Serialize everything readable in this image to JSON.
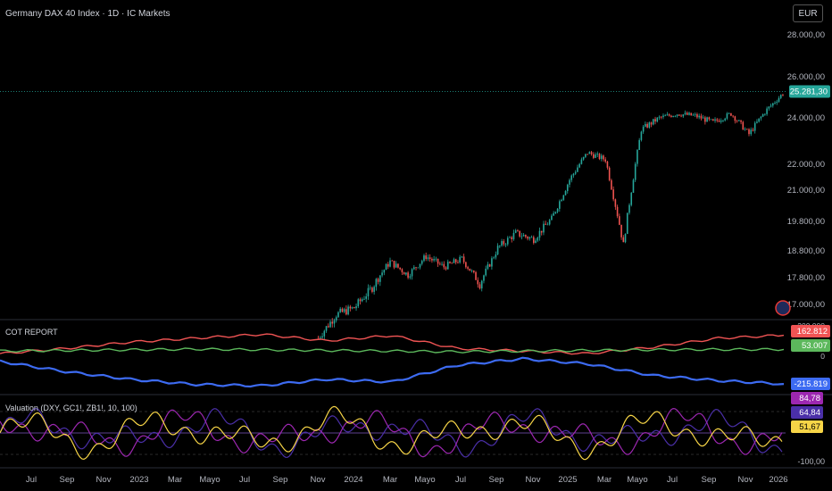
{
  "header": {
    "symbol_title": "Germany DAX 40 Index · 1D · IC Markets",
    "currency_button": "EUR"
  },
  "panes": {
    "cot": {
      "title": "COT REPORT"
    },
    "valuation": {
      "title": "Valuation (DXY, GC1!, ZB1!, 10, 100)"
    }
  },
  "colors": {
    "background": "#000000",
    "candle_up": "#26a69a",
    "candle_down": "#ef5350",
    "cot_red": "#f05454",
    "cot_green": "#5cb85c",
    "cot_blue": "#3d6bf2",
    "val_yellow": "#f7d547",
    "val_purple": "#9c27b0",
    "val_darkpurple": "#4a2fa8"
  },
  "chart_data": [
    {
      "type": "candlestick",
      "title": "Germany DAX 40 Index · 1D · IC Markets",
      "y_axis_ticks": [
        "28.000,00",
        "26.000,00",
        "24.000,00",
        "22.000,00",
        "21.000,00",
        "19.800,00",
        "18.800,00",
        "17.800,00",
        "17.000,00"
      ],
      "last_price": "25.281,30",
      "x_axis_ticks": [
        "Jul",
        "Sep",
        "Nov",
        "2023",
        "Mar",
        "Mayo",
        "Jul",
        "Sep",
        "Nov",
        "2024",
        "Mar",
        "Mayo",
        "Jul",
        "Sep",
        "Nov",
        "2025",
        "Mar",
        "Mayo",
        "Jul",
        "Sep",
        "Nov",
        "2026"
      ],
      "series_close": [
        {
          "x": "2023-11",
          "y": 16000
        },
        {
          "x": "2023-12",
          "y": 16700
        },
        {
          "x": "2024-01",
          "y": 16900
        },
        {
          "x": "2024-02",
          "y": 17500
        },
        {
          "x": "2024-03",
          "y": 18400
        },
        {
          "x": "2024-04",
          "y": 17900
        },
        {
          "x": "2024-05",
          "y": 18600
        },
        {
          "x": "2024-06",
          "y": 18200
        },
        {
          "x": "2024-07",
          "y": 18500
        },
        {
          "x": "2024-08",
          "y": 17600
        },
        {
          "x": "2024-09",
          "y": 18900
        },
        {
          "x": "2024-10",
          "y": 19400
        },
        {
          "x": "2024-11",
          "y": 19200
        },
        {
          "x": "2024-12",
          "y": 19900
        },
        {
          "x": "2025-01",
          "y": 21400
        },
        {
          "x": "2025-02",
          "y": 22500
        },
        {
          "x": "2025-03",
          "y": 22200
        },
        {
          "x": "2025-04",
          "y": 19000
        },
        {
          "x": "2025-05",
          "y": 23500
        },
        {
          "x": "2025-06",
          "y": 24000
        },
        {
          "x": "2025-07",
          "y": 24200
        },
        {
          "x": "2025-08",
          "y": 24100
        },
        {
          "x": "2025-09",
          "y": 23800
        },
        {
          "x": "2025-10",
          "y": 24200
        },
        {
          "x": "2025-11",
          "y": 23300
        },
        {
          "x": "2025-12",
          "y": 24400
        },
        {
          "x": "2026-01",
          "y": 25281.3
        }
      ]
    },
    {
      "type": "line",
      "title": "COT REPORT",
      "last_values": [
        "162.812",
        "53.007",
        "-215.819"
      ],
      "series": [
        {
          "color": "#f05454",
          "values": [
            20000,
            60000,
            110000,
            140000,
            170000,
            120000,
            160000,
            60000,
            40000,
            20000,
            70000,
            140000,
            162812
          ]
        },
        {
          "color": "#5cb85c",
          "values": [
            40000,
            45000,
            50000,
            55000,
            50000,
            45000,
            40000,
            35000,
            40000,
            45000,
            50000,
            52000,
            53007
          ]
        },
        {
          "color": "#3d6bf2",
          "values": [
            -40000,
            -120000,
            -180000,
            -220000,
            -230000,
            -180000,
            -200000,
            -70000,
            -20000,
            -60000,
            -150000,
            -190000,
            -215819
          ]
        }
      ]
    },
    {
      "type": "line",
      "title": "Valuation (DXY, GC1!, ZB1!, 10, 100)",
      "y_axis_ticks": [
        "-100,00"
      ],
      "last_values": [
        "84,78",
        "64,84",
        "51,67"
      ],
      "ylim": [
        -100,
        100
      ]
    }
  ]
}
